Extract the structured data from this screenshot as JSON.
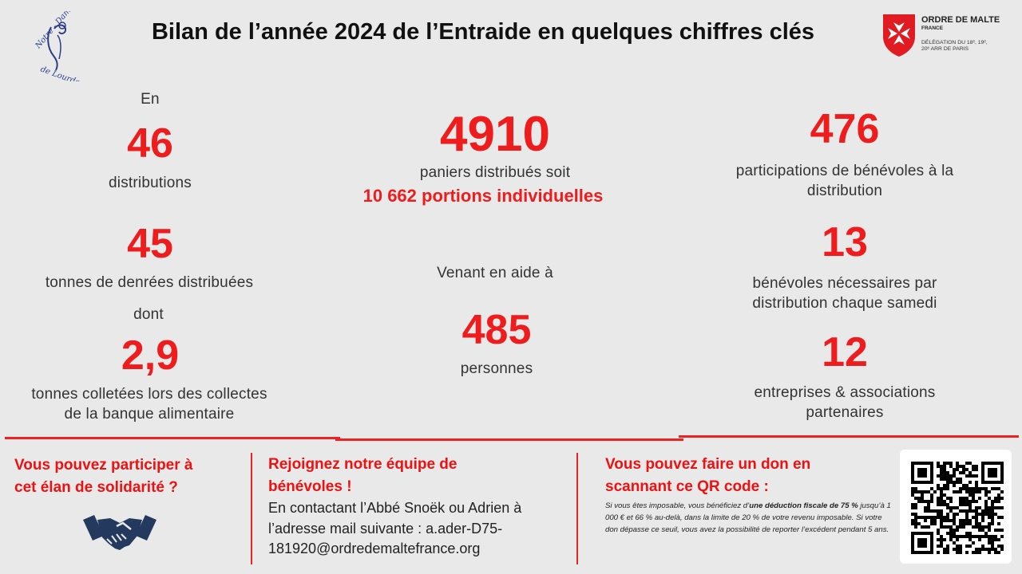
{
  "title": "Bilan de l’année 2024 de l’Entraide en quelques chiffres clés",
  "logo_left": {
    "line1": "Notre - Dame",
    "line2": "de Lourdes"
  },
  "logo_right": {
    "name": "ORDRE DE MALTE",
    "country": "FRANCE",
    "delegation_line1": "DÉLÉGATION DU 18ᵉ, 19ᵉ,",
    "delegation_line2": "20ᵉ ARR DE PARIS"
  },
  "stats": {
    "en_label": "En",
    "distributions_value": "46",
    "distributions_label": "distributions",
    "tonnes_value": "45",
    "tonnes_label": "tonnes de denrées distribuées",
    "dont_label": "dont",
    "collected_value": "2,9",
    "collected_label_1": "tonnes colletées lors des collectes",
    "collected_label_2": "de la banque alimentaire",
    "baskets_value": "4910",
    "baskets_label": "paniers distribués soit",
    "portions_label": "10 662 portions individuelles",
    "venant_label": "Venant en aide à",
    "people_value": "485",
    "people_label": "personnes",
    "participations_value": "476",
    "participations_label_1": "participations de bénévoles à la",
    "participations_label_2": "distribution",
    "volunteers_value": "13",
    "volunteers_label_1": "bénévoles nécessaires par",
    "volunteers_label_2": "distribution chaque samedi",
    "partners_value": "12",
    "partners_label_1": "entreprises & associations",
    "partners_label_2": "partenaires"
  },
  "bottom": {
    "left_line1": "Vous pouvez participer à",
    "left_line2": "cet élan de solidarité ?",
    "mid_title_1": "Rejoignez notre équipe de",
    "mid_title_2": "bénévoles !",
    "mid_line1": "En contactant l’Abbé Snoëk ou Adrien à",
    "mid_line2": "l’adresse mail suivante : a.ader-D75-",
    "mid_line3": "181920@ordredemaltefrance.org",
    "right_title_1": "Vous pouvez faire un don en",
    "right_title_2": "scannant ce QR code :",
    "note_a": "Si vous êtes imposable, vous bénéficiez d’",
    "note_b": "une déduction fiscale de 75 %",
    "note_c": " jusqu’à 1 000 € et 66 % au-delà, dans la limite de 20 % de votre revenu imposable. Si votre don dépasse ce seuil, vous avez la possibilité de reporter l’excédent pendant 5 ans."
  },
  "colors": {
    "accent": "#ee1c1c",
    "background": "#e9e9e9"
  },
  "icons": {
    "handshake": "handshake-icon",
    "qr": "qr-code",
    "maltese_cross": "maltese-cross-icon"
  }
}
